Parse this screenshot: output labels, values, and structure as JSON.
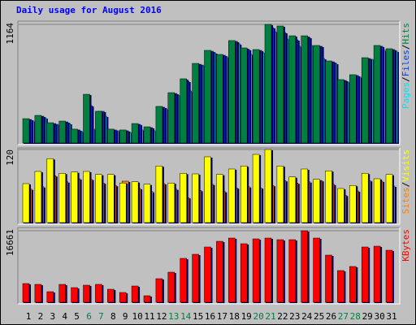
{
  "chart_data": [
    {
      "type": "bar",
      "title": "Daily usage for August 2016",
      "title_color": "#0000ff",
      "ylim": [
        0,
        1164
      ],
      "yticks": [
        1164
      ],
      "grid": true,
      "legend_separator": "/",
      "series": [
        {
          "name": "Pages",
          "color": "#00e0ff",
          "values": [
            215,
            247,
            183,
            191,
            112,
            136,
            263,
            120,
            104,
            128,
            120,
            335,
            470,
            510,
            765,
            885,
            845,
            973,
            869,
            885,
            1092,
            1020,
            949,
            957,
            829,
            781,
            598,
            646,
            821,
            909,
            901
          ]
        },
        {
          "name": "Files",
          "color": "#0040ff",
          "values": [
            231,
            263,
            191,
            207,
            128,
            367,
            311,
            128,
            120,
            183,
            151,
            351,
            486,
            606,
            773,
            901,
            861,
            997,
            917,
            909,
            1132,
            1084,
            1013,
            1036,
            949,
            797,
            614,
            662,
            829,
            949,
            917
          ]
        },
        {
          "name": "Hits",
          "color": "#008040",
          "values": [
            239,
            271,
            199,
            215,
            136,
            478,
            311,
            136,
            128,
            191,
            159,
            359,
            494,
            630,
            781,
            909,
            869,
            1005,
            933,
            917,
            1164,
            1148,
            1052,
            1052,
            957,
            805,
            622,
            670,
            837,
            957,
            925
          ]
        }
      ]
    },
    {
      "type": "bar",
      "ylim": [
        0,
        120
      ],
      "yticks": [
        120
      ],
      "grid": true,
      "legend_separator": "/",
      "series": [
        {
          "name": "Sites",
          "color": "#ff8000",
          "values": [
            55,
            59,
            77,
            67,
            72,
            71,
            65,
            61,
            68,
            56,
            51,
            64,
            55,
            41,
            53,
            63,
            51,
            57,
            59,
            57,
            61,
            69,
            65,
            67,
            69,
            63,
            45,
            52,
            69,
            68,
            60
          ]
        },
        {
          "name": "Visits",
          "color": "#ffff00",
          "values": [
            64,
            84,
            105,
            81,
            83,
            84,
            79,
            79,
            65,
            67,
            63,
            93,
            65,
            81,
            80,
            108,
            79,
            88,
            93,
            112,
            120,
            93,
            75,
            88,
            71,
            85,
            56,
            61,
            81,
            72,
            79
          ]
        }
      ]
    },
    {
      "type": "bar",
      "ylim": [
        0,
        16661
      ],
      "yticks": [
        16661
      ],
      "grid": true,
      "categories": [
        "1",
        "2",
        "3",
        "4",
        "5",
        "6",
        "7",
        "8",
        "9",
        "10",
        "11",
        "12",
        "13",
        "14",
        "15",
        "16",
        "17",
        "18",
        "19",
        "20",
        "21",
        "22",
        "23",
        "24",
        "25",
        "26",
        "27",
        "28",
        "29",
        "30",
        "31"
      ],
      "weekend_indices": [
        5,
        6,
        12,
        13,
        19,
        20,
        26,
        27
      ],
      "weekend_color": "#008040",
      "weekday_color": "#000000",
      "series": [
        {
          "name": "KBytes",
          "color": "#ff0000",
          "values": [
            4355,
            4165,
            2461,
            4165,
            3408,
            3976,
            4165,
            3029,
            2272,
            3787,
            1515,
            5491,
            7005,
            10224,
            11170,
            12874,
            14200,
            14957,
            13632,
            14768,
            14957,
            14579,
            14579,
            16661,
            14957,
            10981,
            7384,
            8330,
            12874,
            13064,
            12117
          ]
        }
      ]
    }
  ]
}
